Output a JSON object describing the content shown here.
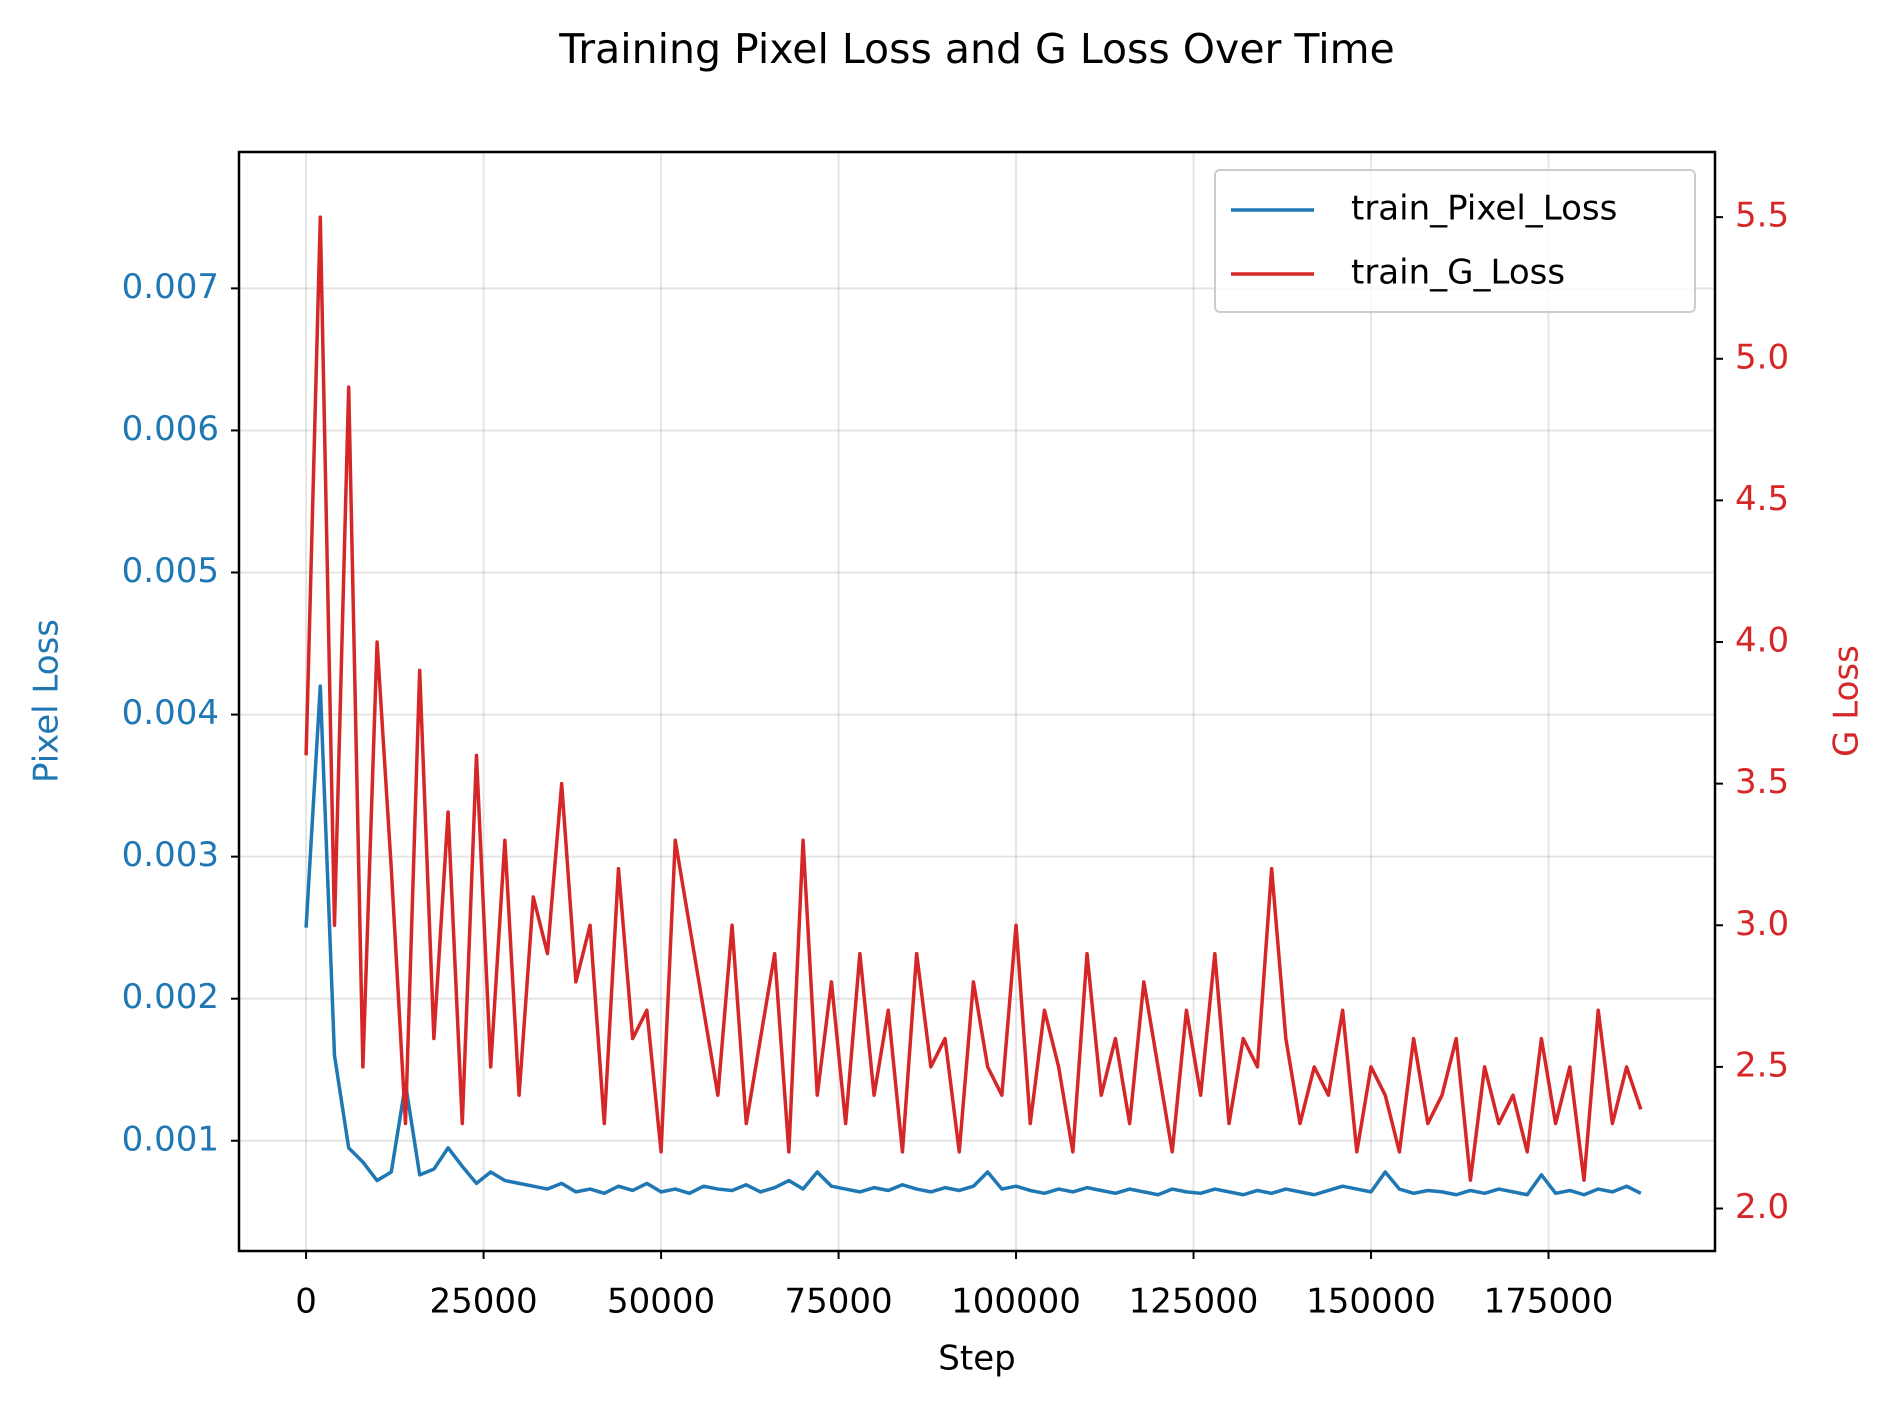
{
  "chart_data": {
    "type": "line",
    "title": "Training Pixel Loss and G Loss Over Time",
    "xlabel": "Step",
    "ylabel": "Pixel Loss",
    "y2label": "G Loss",
    "x": [
      0,
      2000,
      4000,
      6000,
      8000,
      10000,
      12000,
      14000,
      16000,
      18000,
      20000,
      22000,
      24000,
      26000,
      28000,
      30000,
      32000,
      34000,
      36000,
      38000,
      40000,
      42000,
      44000,
      46000,
      48000,
      50000,
      52000,
      54000,
      56000,
      58000,
      60000,
      62000,
      64000,
      66000,
      68000,
      70000,
      72000,
      74000,
      76000,
      78000,
      80000,
      82000,
      84000,
      86000,
      88000,
      90000,
      92000,
      94000,
      96000,
      98000,
      100000,
      102000,
      104000,
      106000,
      108000,
      110000,
      112000,
      114000,
      116000,
      118000,
      120000,
      122000,
      124000,
      126000,
      128000,
      130000,
      132000,
      134000,
      136000,
      138000,
      140000,
      142000,
      144000,
      146000,
      148000,
      150000,
      152000,
      154000,
      156000,
      158000,
      160000,
      162000,
      164000,
      166000,
      168000,
      170000,
      172000,
      174000,
      176000,
      178000,
      180000,
      182000,
      184000,
      186000,
      188000
    ],
    "series": [
      {
        "name": "train_Pixel_Loss",
        "color": "#1f77b4",
        "values": [
          0.0025,
          0.0042,
          0.0016,
          0.00095,
          0.00085,
          0.00072,
          0.00078,
          0.0014,
          0.00076,
          0.0008,
          0.00095,
          0.00082,
          0.0007,
          0.00078,
          0.00072,
          0.0007,
          0.00068,
          0.00066,
          0.0007,
          0.00064,
          0.00066,
          0.00063,
          0.00068,
          0.00065,
          0.0007,
          0.00064,
          0.00066,
          0.00063,
          0.00068,
          0.00066,
          0.00065,
          0.00069,
          0.00064,
          0.00067,
          0.00072,
          0.00066,
          0.00078,
          0.00068,
          0.00066,
          0.00064,
          0.00067,
          0.00065,
          0.00069,
          0.00066,
          0.00064,
          0.00067,
          0.00065,
          0.00068,
          0.00078,
          0.00066,
          0.00068,
          0.00065,
          0.00063,
          0.00066,
          0.00064,
          0.00067,
          0.00065,
          0.00063,
          0.00066,
          0.00064,
          0.00062,
          0.00066,
          0.00064,
          0.00063,
          0.00066,
          0.00064,
          0.00062,
          0.00065,
          0.00063,
          0.00066,
          0.00064,
          0.00062,
          0.00065,
          0.00068,
          0.00066,
          0.00064,
          0.00078,
          0.00066,
          0.00063,
          0.00065,
          0.00064,
          0.00062,
          0.00065,
          0.00063,
          0.00066,
          0.00064,
          0.00062,
          0.00076,
          0.00063,
          0.00065,
          0.00062,
          0.00066,
          0.00064,
          0.00068,
          0.00063
        ]
      },
      {
        "name": "train_G_Loss",
        "color": "#d62728",
        "axis": "y2",
        "values": [
          3.6,
          5.5,
          3.0,
          4.9,
          2.5,
          4.0,
          3.2,
          2.3,
          3.9,
          2.6,
          3.4,
          2.3,
          3.6,
          2.5,
          3.3,
          2.4,
          3.1,
          2.9,
          3.5,
          2.8,
          3.0,
          2.3,
          3.2,
          2.6,
          2.7,
          2.2,
          3.3,
          3.0,
          2.7,
          2.4,
          3.0,
          2.3,
          2.6,
          2.9,
          2.2,
          3.3,
          2.4,
          2.8,
          2.3,
          2.9,
          2.4,
          2.7,
          2.2,
          2.9,
          2.5,
          2.6,
          2.2,
          2.8,
          2.5,
          2.4,
          3.0,
          2.3,
          2.7,
          2.5,
          2.2,
          2.9,
          2.4,
          2.6,
          2.3,
          2.8,
          2.5,
          2.2,
          2.7,
          2.4,
          2.9,
          2.3,
          2.6,
          2.5,
          3.2,
          2.6,
          2.3,
          2.5,
          2.4,
          2.7,
          2.2,
          2.5,
          2.4,
          2.2,
          2.6,
          2.3,
          2.4,
          2.6,
          2.1,
          2.5,
          2.3,
          2.4,
          2.2,
          2.6,
          2.3,
          2.5,
          2.1,
          2.7,
          2.3,
          2.5,
          2.35
        ]
      }
    ],
    "xlim": [
      -9450,
      198450
    ],
    "xticks": [
      0,
      25000,
      50000,
      75000,
      100000,
      125000,
      150000,
      175000
    ],
    "ylim": [
      0.000224,
      0.00796
    ],
    "yticks": [
      0.001,
      0.002,
      0.003,
      0.004,
      0.005,
      0.006,
      0.007
    ],
    "y2lim": [
      1.85,
      5.73
    ],
    "y2ticks": [
      {
        "value": 2,
        "label": "2.0"
      },
      2.5,
      {
        "value": 3,
        "label": "3.0"
      },
      3.5,
      {
        "value": 4,
        "label": "4.0"
      },
      4.5,
      {
        "value": 5,
        "label": "5.0"
      },
      5.5
    ],
    "grid": true,
    "legend": "upper right"
  }
}
